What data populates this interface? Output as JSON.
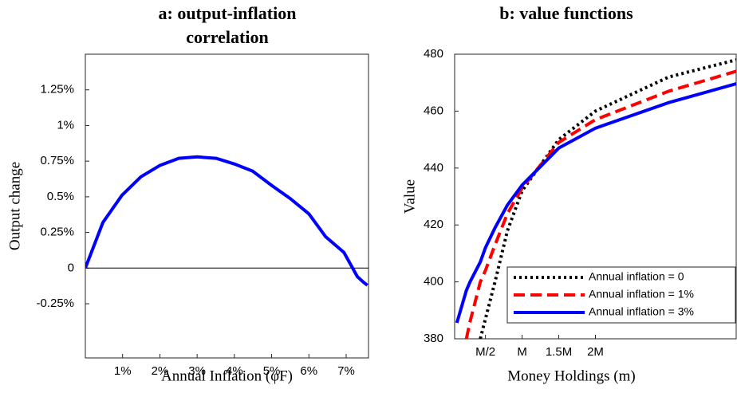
{
  "chart_data": [
    {
      "type": "line",
      "title": "a: output-inflation correlation",
      "x_label": "Annual Inflation (φF)",
      "y_label": "Output change",
      "x": [
        0,
        0.47,
        0.98,
        1.49,
        2,
        2.51,
        3,
        3.51,
        4,
        4.49,
        5,
        5.49,
        6,
        6.45,
        6.94,
        7.3,
        7.47,
        7.57
      ],
      "series": [
        {
          "color": "#0000ff",
          "dash": "solid",
          "values": [
            0,
            0.32,
            0.51,
            0.64,
            0.72,
            0.77,
            0.78,
            0.77,
            0.73,
            0.68,
            0.58,
            0.49,
            0.38,
            0.22,
            0.11,
            -0.06,
            -0.1,
            -0.12
          ]
        }
      ],
      "xlim": [
        0,
        7.6
      ],
      "xticks": [
        {
          "value": 1,
          "label": "1%"
        },
        {
          "value": 2,
          "label": "2%"
        },
        {
          "value": 3,
          "label": "3%"
        },
        {
          "value": 4,
          "label": "4%"
        },
        {
          "value": 5,
          "label": "5%"
        },
        {
          "value": 6,
          "label": "6%"
        },
        {
          "value": 7,
          "label": "7%"
        }
      ],
      "ylim": [
        -0.63,
        1.5
      ],
      "yticks": [
        {
          "value": -0.25,
          "label": "-0.25%"
        },
        0,
        {
          "value": 0.25,
          "label": "0.25%"
        },
        {
          "value": 0.5,
          "label": "0.5%"
        },
        {
          "value": 0.75,
          "label": "0.75%"
        },
        {
          "value": 1,
          "label": "1%"
        },
        {
          "value": 1.25,
          "label": "1.25%"
        }
      ],
      "reference_line": 0
    },
    {
      "type": "line",
      "title": "b: value functions",
      "x_label": "Money Holdings (m)",
      "y_label": "Value",
      "x": [
        0.11,
        0.24,
        0.29,
        0.43,
        0.5,
        0.63,
        0.8,
        1,
        1.5,
        2,
        3,
        3.92
      ],
      "series": [
        {
          "name": "Annual inflation = 0",
          "color": "#000000",
          "dash": "dotted",
          "values": [
            null,
            null,
            null,
            380,
            387,
            400,
            418,
            432,
            450,
            460,
            472,
            478
          ]
        },
        {
          "name": "Annual inflation = 1%",
          "color": "#ff0000",
          "dash": "dashed",
          "values": [
            null,
            380,
            386,
            400,
            404,
            413,
            424,
            433,
            449,
            457,
            467,
            474
          ]
        },
        {
          "name": "Annual inflation = 3%",
          "color": "#0000ff",
          "dash": "solid",
          "values": [
            385.6,
            397,
            400,
            407,
            412,
            419,
            427,
            434,
            447,
            454,
            463,
            469.6
          ]
        }
      ],
      "xlim": [
        0.08,
        3.92
      ],
      "xticks": [
        {
          "value": 0.5,
          "label": "M/2"
        },
        {
          "value": 1,
          "label": "M"
        },
        {
          "value": 1.5,
          "label": "1.5M"
        },
        {
          "value": 2,
          "label": "2M"
        }
      ],
      "ylim": [
        380,
        480
      ],
      "yticks": [
        380,
        400,
        420,
        440,
        460,
        480
      ],
      "legend": "lower right"
    }
  ]
}
